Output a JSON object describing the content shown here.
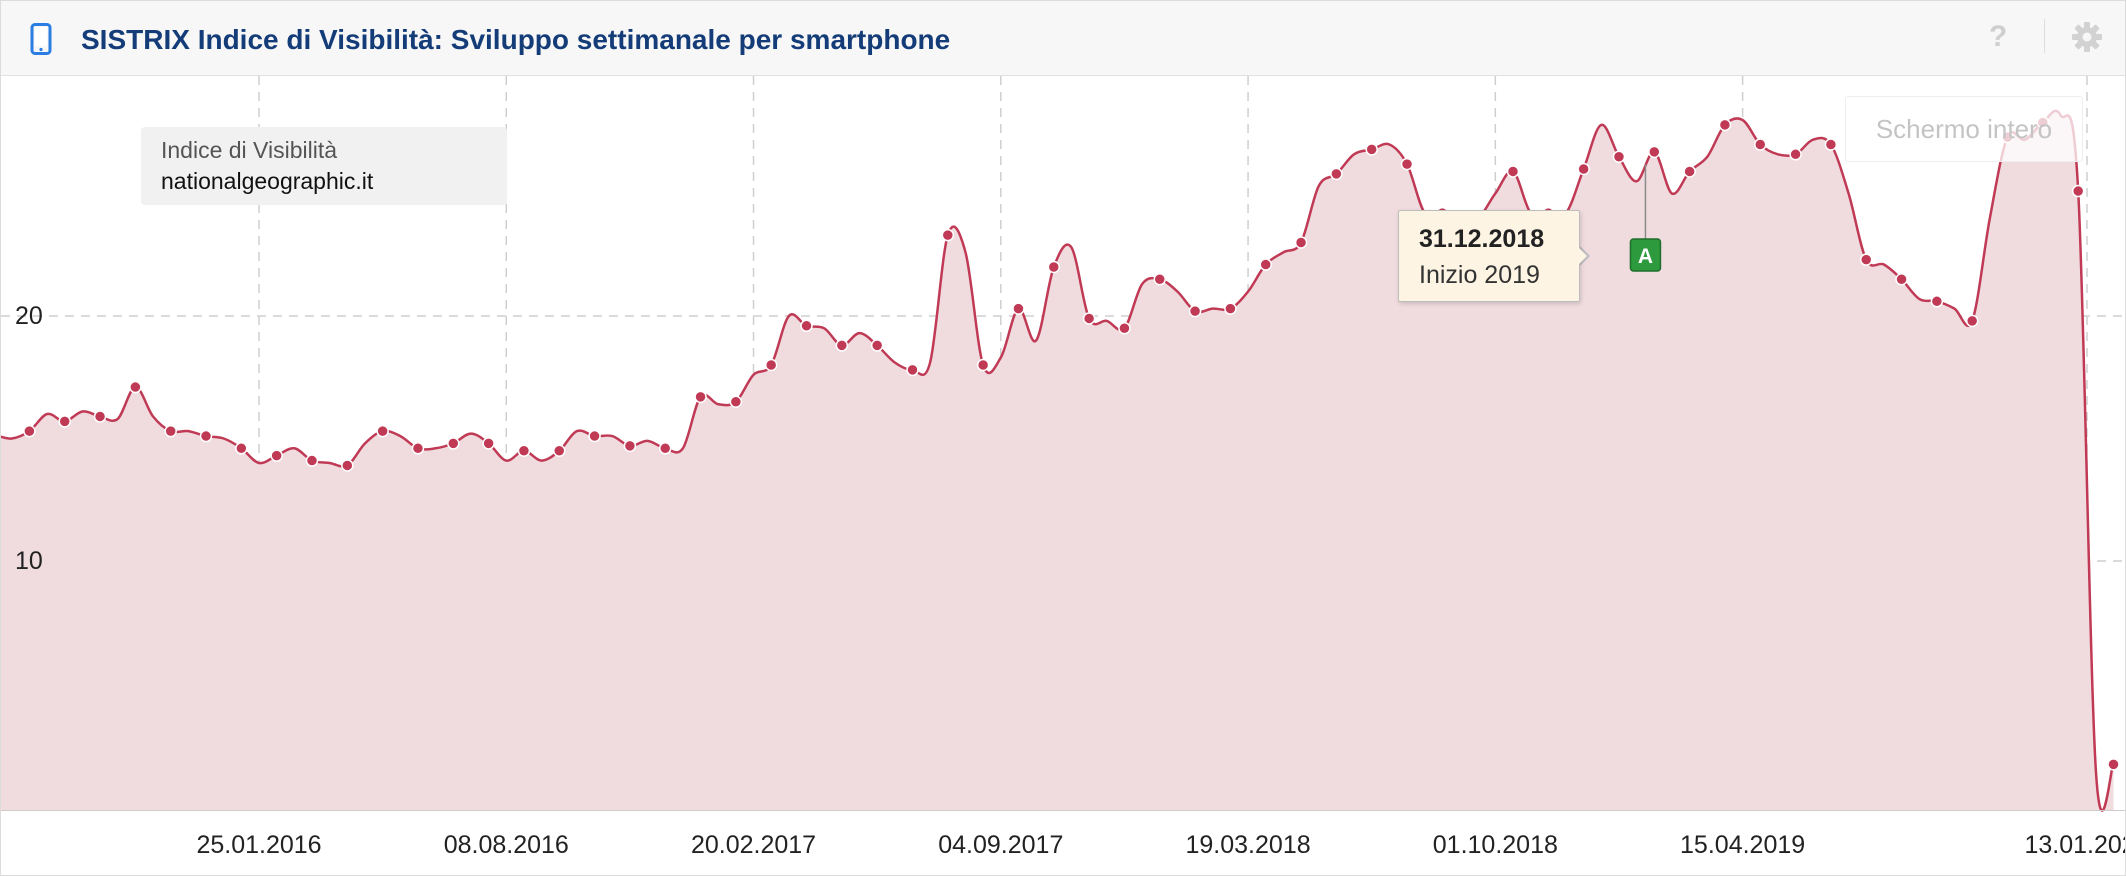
{
  "header": {
    "title": "SISTRIX Indice di Visibilità: Sviluppo settimanale per smartphone",
    "help_label": "?",
    "icons": [
      "smartphone-icon",
      "help-icon",
      "gear-icon"
    ],
    "accent_color": "#2a7de1",
    "title_color": "#143c78"
  },
  "legend": {
    "label": "Indice di Visibilità",
    "domain": "nationalgeographic.it"
  },
  "fullscreen_label": "Schermo intero",
  "tooltip": {
    "date": "31.12.2018",
    "text": "Inizio 2019"
  },
  "event_marker": {
    "label": "A",
    "date": "2019-01-28",
    "color": "#2e9a3e"
  },
  "chart_data": {
    "type": "area",
    "series": [
      {
        "color": "#c03a55",
        "fill": "#f0dcdf",
        "points": [
          [
            "2015-06-15",
            14.8
          ],
          [
            "2015-06-29",
            15.1
          ],
          [
            "2015-07-13",
            15.0
          ],
          [
            "2015-07-27",
            15.3
          ],
          [
            "2015-08-10",
            16.0
          ],
          [
            "2015-08-24",
            15.7
          ],
          [
            "2015-09-07",
            16.1
          ],
          [
            "2015-09-21",
            15.9
          ],
          [
            "2015-10-05",
            15.8
          ],
          [
            "2015-10-19",
            17.1
          ],
          [
            "2015-11-02",
            15.9
          ],
          [
            "2015-11-16",
            15.3
          ],
          [
            "2015-11-30",
            15.3
          ],
          [
            "2015-12-14",
            15.1
          ],
          [
            "2015-12-28",
            15.0
          ],
          [
            "2016-01-11",
            14.6
          ],
          [
            "2016-01-25",
            14.0
          ],
          [
            "2016-02-08",
            14.3
          ],
          [
            "2016-02-22",
            14.6
          ],
          [
            "2016-03-07",
            14.1
          ],
          [
            "2016-03-21",
            14.0
          ],
          [
            "2016-04-04",
            13.9
          ],
          [
            "2016-04-18",
            14.8
          ],
          [
            "2016-05-02",
            15.3
          ],
          [
            "2016-05-16",
            15.1
          ],
          [
            "2016-05-30",
            14.6
          ],
          [
            "2016-06-13",
            14.6
          ],
          [
            "2016-06-27",
            14.8
          ],
          [
            "2016-07-11",
            15.2
          ],
          [
            "2016-07-25",
            14.8
          ],
          [
            "2016-08-08",
            14.1
          ],
          [
            "2016-08-22",
            14.5
          ],
          [
            "2016-09-05",
            14.1
          ],
          [
            "2016-09-19",
            14.5
          ],
          [
            "2016-10-03",
            15.3
          ],
          [
            "2016-10-17",
            15.1
          ],
          [
            "2016-10-31",
            15.1
          ],
          [
            "2016-11-14",
            14.7
          ],
          [
            "2016-11-28",
            14.9
          ],
          [
            "2016-12-12",
            14.6
          ],
          [
            "2016-12-26",
            14.6
          ],
          [
            "2017-01-09",
            16.7
          ],
          [
            "2017-01-23",
            16.4
          ],
          [
            "2017-02-06",
            16.5
          ],
          [
            "2017-02-20",
            17.6
          ],
          [
            "2017-03-06",
            18.0
          ],
          [
            "2017-03-20",
            20.0
          ],
          [
            "2017-04-03",
            19.6
          ],
          [
            "2017-04-17",
            19.5
          ],
          [
            "2017-05-01",
            18.8
          ],
          [
            "2017-05-15",
            19.3
          ],
          [
            "2017-05-29",
            18.8
          ],
          [
            "2017-06-12",
            18.1
          ],
          [
            "2017-06-26",
            17.8
          ],
          [
            "2017-07-10",
            18.1
          ],
          [
            "2017-07-24",
            23.3
          ],
          [
            "2017-08-07",
            22.6
          ],
          [
            "2017-08-21",
            18.0
          ],
          [
            "2017-09-04",
            18.3
          ],
          [
            "2017-09-18",
            20.3
          ],
          [
            "2017-10-02",
            19.0
          ],
          [
            "2017-10-16",
            22.0
          ],
          [
            "2017-10-30",
            22.8
          ],
          [
            "2017-11-13",
            19.9
          ],
          [
            "2017-11-27",
            19.8
          ],
          [
            "2017-12-11",
            19.5
          ],
          [
            "2017-12-25",
            21.3
          ],
          [
            "2018-01-08",
            21.5
          ],
          [
            "2018-01-22",
            21.0
          ],
          [
            "2018-02-05",
            20.2
          ],
          [
            "2018-02-19",
            20.3
          ],
          [
            "2018-03-05",
            20.3
          ],
          [
            "2018-03-19",
            21.0
          ],
          [
            "2018-04-02",
            22.1
          ],
          [
            "2018-04-16",
            22.6
          ],
          [
            "2018-04-30",
            23.0
          ],
          [
            "2018-05-14",
            25.3
          ],
          [
            "2018-05-28",
            25.8
          ],
          [
            "2018-06-11",
            26.6
          ],
          [
            "2018-06-25",
            26.8
          ],
          [
            "2018-07-09",
            27.0
          ],
          [
            "2018-07-23",
            26.2
          ],
          [
            "2018-08-06",
            24.2
          ],
          [
            "2018-08-20",
            24.2
          ],
          [
            "2018-09-03",
            24.2
          ],
          [
            "2018-09-17",
            24.0
          ],
          [
            "2018-10-01",
            25.0
          ],
          [
            "2018-10-15",
            25.9
          ],
          [
            "2018-10-29",
            24.2
          ],
          [
            "2018-11-12",
            24.2
          ],
          [
            "2018-11-26",
            24.2
          ],
          [
            "2018-12-10",
            26.0
          ],
          [
            "2018-12-24",
            27.8
          ],
          [
            "2019-01-07",
            26.5
          ],
          [
            "2019-01-21",
            25.5
          ],
          [
            "2019-02-04",
            26.7
          ],
          [
            "2019-02-18",
            25.0
          ],
          [
            "2019-03-04",
            25.9
          ],
          [
            "2019-03-18",
            26.5
          ],
          [
            "2019-04-01",
            27.8
          ],
          [
            "2019-04-15",
            28.0
          ],
          [
            "2019-04-29",
            27.0
          ],
          [
            "2019-05-13",
            26.6
          ],
          [
            "2019-05-27",
            26.6
          ],
          [
            "2019-06-10",
            27.2
          ],
          [
            "2019-06-24",
            27.0
          ],
          [
            "2019-07-08",
            25.0
          ],
          [
            "2019-07-22",
            22.3
          ],
          [
            "2019-08-05",
            22.1
          ],
          [
            "2019-08-19",
            21.5
          ],
          [
            "2019-09-02",
            20.7
          ],
          [
            "2019-09-16",
            20.6
          ],
          [
            "2019-09-30",
            20.3
          ],
          [
            "2019-10-14",
            19.8
          ],
          [
            "2019-10-28",
            24.0
          ],
          [
            "2019-11-11",
            27.3
          ],
          [
            "2019-11-25",
            27.2
          ],
          [
            "2019-12-09",
            27.9
          ],
          [
            "2019-12-23",
            28.2
          ],
          [
            "2020-01-06",
            25.1
          ],
          [
            "2020-01-20",
            1.5
          ],
          [
            "2020-02-03",
            1.7
          ]
        ]
      }
    ],
    "ylim": [
      0,
      30
    ],
    "yticks": [
      10,
      20
    ],
    "xticks": [
      "25.01.2016",
      "08.08.2016",
      "20.02.2017",
      "04.09.2017",
      "19.03.2018",
      "01.10.2018",
      "15.04.2019",
      "13.01.2020"
    ],
    "x_range": [
      "2015-06-15",
      "2020-02-03"
    ],
    "grid": true
  }
}
